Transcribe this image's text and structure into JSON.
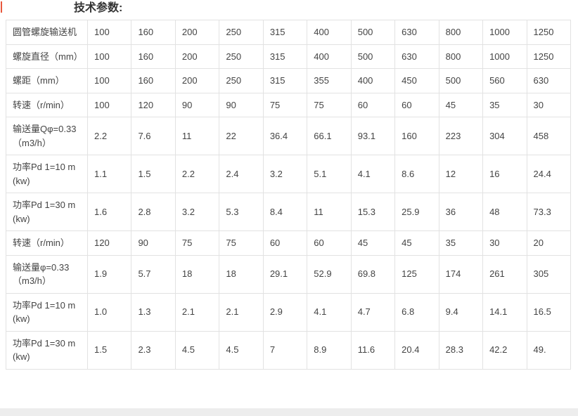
{
  "page": {
    "title": "技术参数:"
  },
  "colors": {
    "cursor_mark": "#e8583d",
    "table_border": "#e2e2e2",
    "text": "#444444",
    "bottom_strip": "#ededed"
  },
  "table": {
    "rows": [
      {
        "label": "圆管螺旋输送机",
        "values": [
          "100",
          "160",
          "200",
          "250",
          "315",
          "400",
          "500",
          "630",
          "800",
          "1000",
          "1250"
        ]
      },
      {
        "label": "螺旋直径（mm）",
        "values": [
          "100",
          "160",
          "200",
          "250",
          "315",
          "400",
          "500",
          "630",
          "800",
          "1000",
          "1250"
        ]
      },
      {
        "label": "螺距（mm）",
        "values": [
          "100",
          "160",
          "200",
          "250",
          "315",
          "355",
          "400",
          "450",
          "500",
          "560",
          "630"
        ]
      },
      {
        "label": "转速（r/min）",
        "values": [
          "100",
          "120",
          "90",
          "90",
          "75",
          "75",
          "60",
          "60",
          "45",
          "35",
          "30"
        ]
      },
      {
        "label": "输送量Qφ=0.33（m3/h）",
        "values": [
          "2.2",
          "7.6",
          "11",
          "22",
          "36.4",
          "66.1",
          "93.1",
          "160",
          "223",
          "304",
          "458"
        ]
      },
      {
        "label": "功率Pd 1=10 m(kw)",
        "values": [
          "1.1",
          "1.5",
          "2.2",
          "2.4",
          "3.2",
          "5.1",
          "4.1",
          "8.6",
          "12",
          "16",
          "24.4"
        ]
      },
      {
        "label": "功率Pd 1=30 m(kw)",
        "values": [
          "1.6",
          "2.8",
          "3.2",
          "5.3",
          "8.4",
          "11",
          "15.3",
          "25.9",
          "36",
          "48",
          "73.3"
        ]
      },
      {
        "label": "转速（r/min）",
        "values": [
          "120",
          "90",
          "75",
          "75",
          "60",
          "60",
          "45",
          "45",
          "35",
          "30",
          "20"
        ]
      },
      {
        "label": "输送量φ=0.33 （m3/h）",
        "values": [
          "1.9",
          "5.7",
          "18",
          "18",
          "29.1",
          "52.9",
          "69.8",
          "125",
          "174",
          "261",
          "305"
        ]
      },
      {
        "label": "功率Pd 1=10 m(kw)",
        "values": [
          "1.0",
          "1.3",
          "2.1",
          "2.1",
          "2.9",
          "4.1",
          "4.7",
          "6.8",
          "9.4",
          "14.1",
          "16.5"
        ]
      },
      {
        "label": "功率Pd 1=30 m(kw)",
        "values": [
          "1.5",
          "2.3",
          "4.5",
          "4.5",
          "7",
          "8.9",
          "11.6",
          "20.4",
          "28.3",
          "42.2",
          "49."
        ]
      }
    ]
  }
}
